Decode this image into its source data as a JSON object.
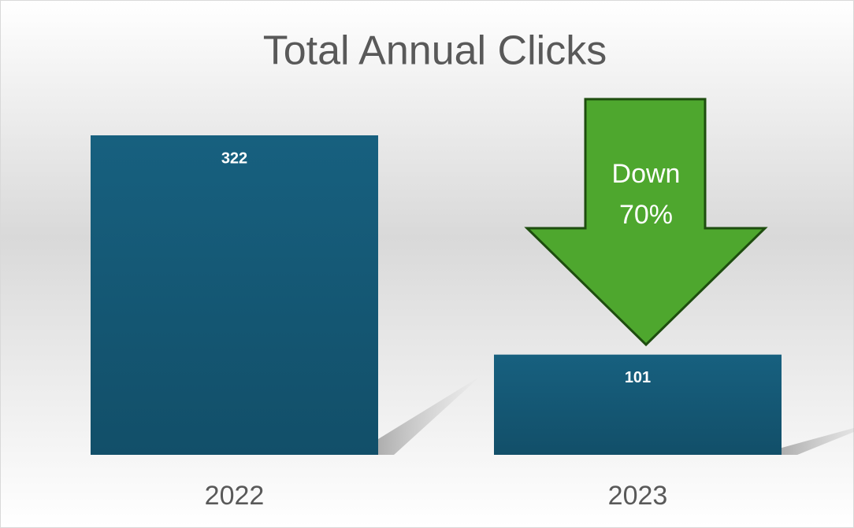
{
  "chart_data": {
    "type": "bar",
    "title": "Total Annual Clicks",
    "categories": [
      "2022",
      "2023"
    ],
    "values": [
      322,
      101
    ],
    "color": "#155d7e",
    "annotation": "Down 70%",
    "annotation_color": "#4ea72e"
  }
}
